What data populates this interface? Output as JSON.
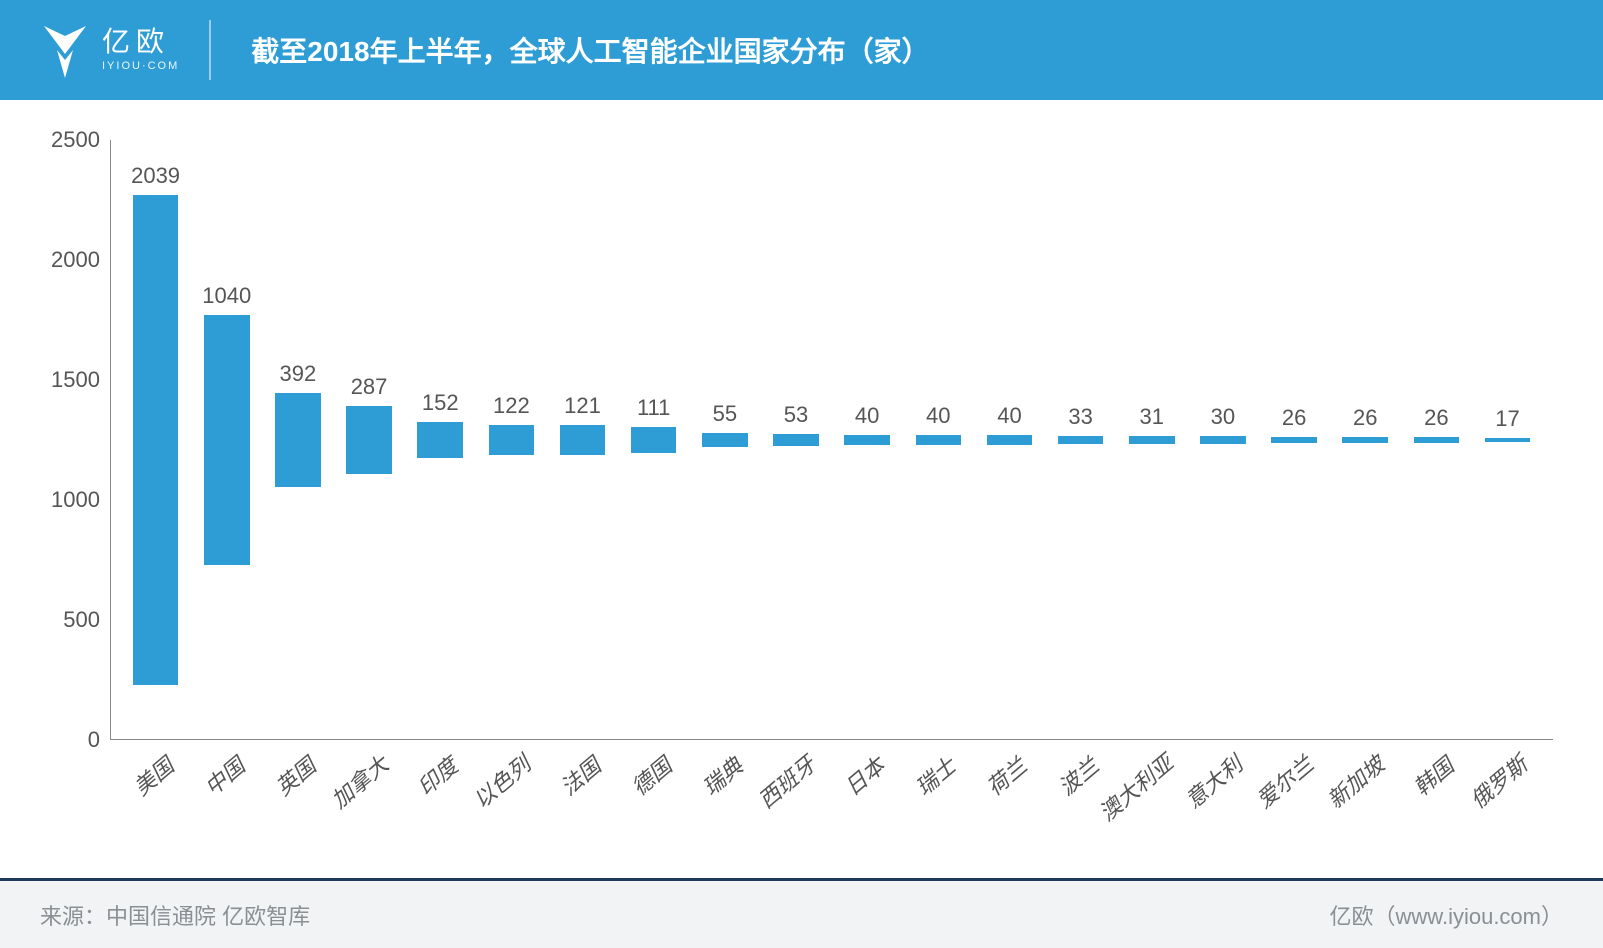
{
  "header": {
    "bg_color": "#2e9dd6",
    "logo": {
      "cn": "亿欧",
      "en": "IYIOU·COM"
    },
    "title": "截至2018年上半年，全球人工智能企业国家分布（家）",
    "title_fontsize": 28
  },
  "chart": {
    "type": "bar",
    "categories": [
      "美国",
      "中国",
      "英国",
      "加拿大",
      "印度",
      "以色列",
      "法国",
      "德国",
      "瑞典",
      "西班牙",
      "日本",
      "瑞士",
      "荷兰",
      "波兰",
      "澳大利亚",
      "意大利",
      "爱尔兰",
      "新加坡",
      "韩国",
      "俄罗斯"
    ],
    "values": [
      2039,
      1040,
      392,
      287,
      152,
      122,
      121,
      111,
      55,
      53,
      40,
      40,
      40,
      33,
      31,
      30,
      26,
      26,
      26,
      17
    ],
    "bar_color": "#2e9dd6",
    "value_label_color": "#555555",
    "value_label_fontsize": 22,
    "x_label_color": "#555555",
    "x_label_fontsize": 22,
    "x_label_rotation_deg": -40,
    "y_label_color": "#555555",
    "y_label_fontsize": 22,
    "ylim": [
      0,
      2500
    ],
    "ytick_step": 500,
    "yticks": [
      0,
      500,
      1000,
      1500,
      2000,
      2500
    ],
    "axis_color": "#888888",
    "background_color": "#ffffff",
    "bar_width_ratio": 0.64
  },
  "footer": {
    "bg_color": "#f1f3f5",
    "text_color": "#8a8f94",
    "border_top_color": "#1e3a5f",
    "source_label": "来源：中国信通院 亿欧智库",
    "right_label": "亿欧（www.iyiou.com）",
    "fontsize": 22
  }
}
